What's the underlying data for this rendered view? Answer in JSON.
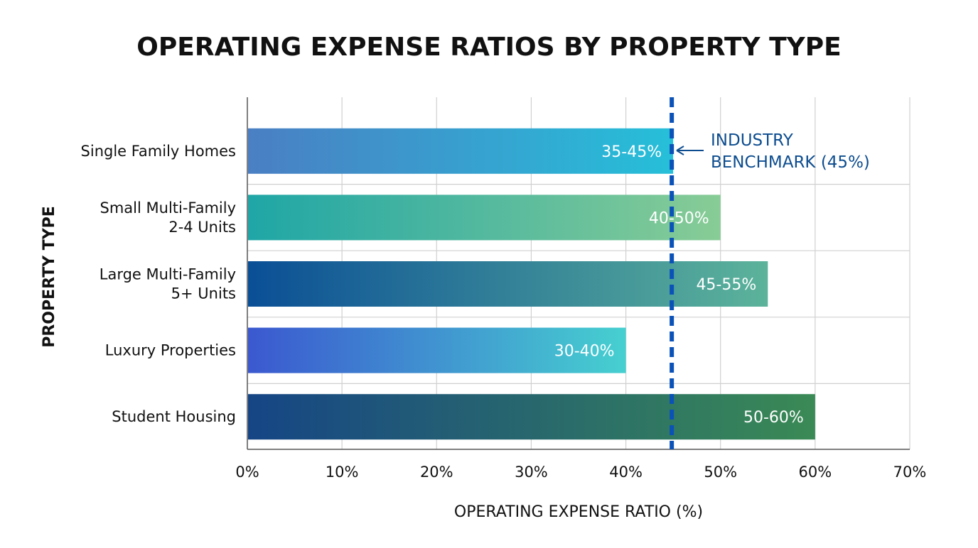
{
  "chart_data": {
    "type": "bar",
    "orientation": "horizontal",
    "title": "OPERATING EXPENSE RATIOS BY PROPERTY TYPE",
    "xlabel": "OPERATING EXPENSE RATIO (%)",
    "ylabel": "PROPERTY TYPE",
    "xlim": [
      0,
      70
    ],
    "xticks": [
      0,
      10,
      20,
      30,
      40,
      50,
      60,
      70
    ],
    "xtick_labels": [
      "0%",
      "10%",
      "20%",
      "30%",
      "40%",
      "50%",
      "60%",
      "70%"
    ],
    "grid": true,
    "categories": [
      [
        "Single Family Homes"
      ],
      [
        "Small Multi-Family",
        "2-4 Units"
      ],
      [
        "Large Multi-Family",
        "5+ Units"
      ],
      [
        "Luxury Properties"
      ],
      [
        "Student Housing"
      ]
    ],
    "ranges": [
      [
        35,
        45
      ],
      [
        40,
        50
      ],
      [
        45,
        55
      ],
      [
        30,
        40
      ],
      [
        50,
        60
      ]
    ],
    "values": [
      45,
      50,
      55,
      40,
      60
    ],
    "data_labels": [
      "35-45%",
      "40-50%",
      "45-55%",
      "30-40%",
      "50-60%"
    ],
    "bar_gradients": [
      [
        "#4a7fc4",
        "#26bfd9"
      ],
      [
        "#1fa6a6",
        "#88cc96"
      ],
      [
        "#0a4f96",
        "#5cb39a"
      ],
      [
        "#3b58d0",
        "#46d0d0"
      ],
      [
        "#164585",
        "#3a8a55"
      ]
    ],
    "benchmark": {
      "value": 45,
      "label": [
        "INDUSTRY",
        "BENCHMARK (45%)"
      ],
      "color": "#0a52b8",
      "label_color": "#0d4d8f",
      "style": "dashed"
    }
  }
}
